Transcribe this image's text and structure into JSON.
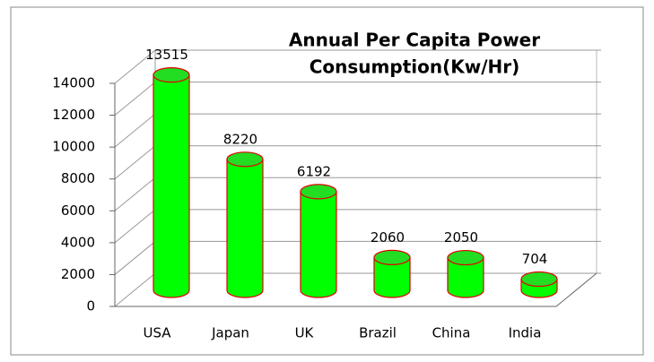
{
  "chart_data": {
    "type": "bar",
    "title": [
      "Annual Per Capita Power",
      "Consumption(Kw/Hr)"
    ],
    "categories": [
      "USA",
      "Japan",
      "UK",
      "Brazil",
      "China",
      "India"
    ],
    "values": [
      13515,
      8220,
      6192,
      2060,
      2050,
      704
    ],
    "color": "#00ff00",
    "edge_color": "#e00000",
    "ylim": [
      0,
      14000
    ],
    "yticks": [
      0,
      2000,
      4000,
      6000,
      8000,
      10000,
      12000,
      14000
    ],
    "grid": true
  }
}
